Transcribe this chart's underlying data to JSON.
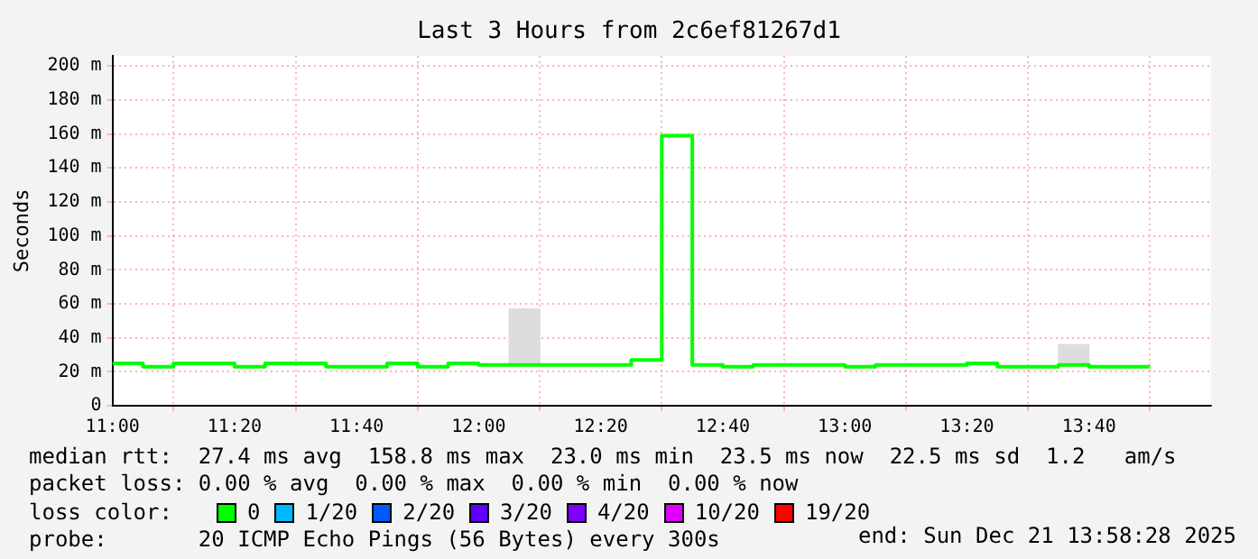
{
  "chart_data": {
    "type": "step",
    "title": "Last 3 Hours from 2c6ef81267d1",
    "ylabel": "Seconds",
    "xlim": [
      11,
      14
    ],
    "xticks": [
      {
        "value": 11,
        "label": "11:00"
      },
      {
        "value": 11.3333,
        "label": "11:20"
      },
      {
        "value": 11.6667,
        "label": "11:40"
      },
      {
        "value": 12,
        "label": "12:00"
      },
      {
        "value": 12.3333,
        "label": "12:20"
      },
      {
        "value": 12.6667,
        "label": "12:40"
      },
      {
        "value": 13,
        "label": "13:00"
      },
      {
        "value": 13.3333,
        "label": "13:20"
      },
      {
        "value": 13.6667,
        "label": "13:40"
      }
    ],
    "ylim": [
      0,
      206
    ],
    "yticks": [
      0,
      {
        "value": 20,
        "label": "20 m"
      },
      {
        "value": 40,
        "label": "40 m"
      },
      {
        "value": 60,
        "label": "60 m"
      },
      {
        "value": 80,
        "label": "80 m"
      },
      {
        "value": 100,
        "label": "100 m"
      },
      {
        "value": 120,
        "label": "120 m"
      },
      {
        "value": 140,
        "label": "140 m"
      },
      {
        "value": 160,
        "label": "160 m"
      },
      {
        "value": 180,
        "label": "180 m"
      },
      {
        "value": 200,
        "label": "200 m"
      }
    ],
    "grid": true,
    "legend": "bottom",
    "legend_title": "loss color:",
    "marker": "none",
    "line_style": "solid",
    "series": [
      {
        "type": "bar",
        "color": "#dddddd",
        "x": [
          12.125,
          13.625
        ],
        "base": [
          24,
          24
        ],
        "values": [
          33,
          12
        ]
      },
      {
        "name": "0",
        "color": "#00ff00",
        "x": [
          11,
          11.0833,
          11.1667,
          11.25,
          11.3333,
          11.4167,
          11.5,
          11.5833,
          11.6667,
          11.75,
          11.8333,
          11.9167,
          12,
          12.0833,
          12.1667,
          12.25,
          12.3333,
          12.4167,
          12.5,
          12.5833,
          12.6667,
          12.75,
          12.8333,
          12.9167,
          13,
          13.0833,
          13.1667,
          13.25,
          13.3333,
          13.4167,
          13.5,
          13.5833,
          13.6667,
          13.75,
          13.8333
        ],
        "values": [
          25,
          25,
          23,
          25,
          25,
          23,
          25,
          25,
          23,
          23,
          25,
          23,
          25,
          24,
          24,
          24,
          24,
          24,
          27,
          159,
          24,
          23,
          24,
          24,
          24,
          23,
          24,
          24,
          24,
          25,
          23,
          23,
          24,
          23,
          23
        ]
      },
      {
        "name": "1/20",
        "color": "#00b8ff"
      },
      {
        "name": "2/20",
        "color": "#0059ff"
      },
      {
        "name": "3/20",
        "color": "#5e00ff"
      },
      {
        "name": "4/20",
        "color": "#7e00ff"
      },
      {
        "name": "10/20",
        "color": "#dd00ff"
      },
      {
        "name": "19/20",
        "color": "#ff0000"
      }
    ],
    "annotations": [
      "median rtt:  27.4 ms avg  158.8 ms max  23.0 ms min  23.5 ms now  22.5 ms sd  1.2   am/s",
      "packet loss: 0.00 % avg  0.00 % max  0.00 % min  0.00 % now",
      "probe:       20 ICMP Echo Pings (56 Bytes) every 300s",
      "end: Sun Dec 21 13:58:28 2025"
    ]
  }
}
